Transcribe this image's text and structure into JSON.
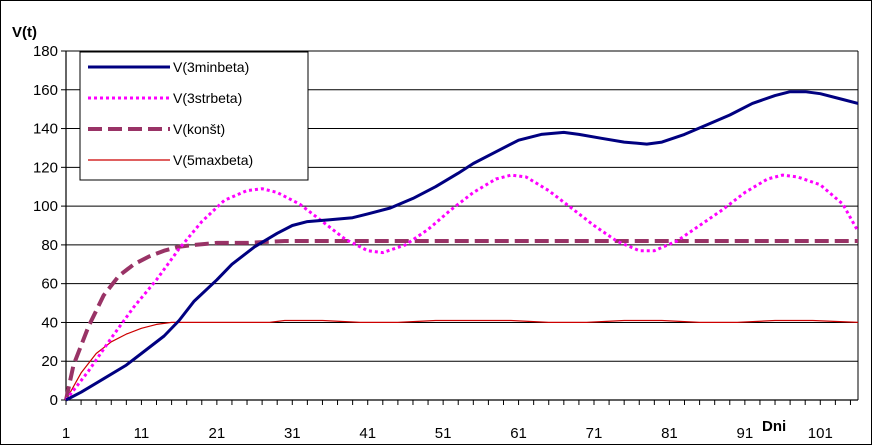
{
  "chart_data": {
    "type": "line",
    "title": "",
    "xlabel": "Dni",
    "ylabel": "V(t)",
    "ylim": [
      0,
      180
    ],
    "yticks": [
      0,
      20,
      40,
      60,
      80,
      100,
      120,
      140,
      160,
      180
    ],
    "xticks": [
      1,
      11,
      21,
      31,
      41,
      51,
      61,
      71,
      81,
      91,
      101
    ],
    "xlim": [
      1,
      106
    ],
    "grid": true,
    "legend_position": "top-left",
    "series": [
      {
        "name": "V(3minbeta)",
        "color": "#000080",
        "style": "solid-thick",
        "points": [
          [
            1,
            0
          ],
          [
            3,
            4
          ],
          [
            6,
            11
          ],
          [
            9,
            18
          ],
          [
            11,
            24
          ],
          [
            14,
            33
          ],
          [
            16,
            41
          ],
          [
            18,
            51
          ],
          [
            21,
            62
          ],
          [
            23,
            70
          ],
          [
            26,
            79
          ],
          [
            29,
            86
          ],
          [
            31,
            90
          ],
          [
            33,
            92
          ],
          [
            36,
            93
          ],
          [
            39,
            94
          ],
          [
            41,
            96
          ],
          [
            44,
            99
          ],
          [
            47,
            104
          ],
          [
            50,
            110
          ],
          [
            53,
            117
          ],
          [
            55,
            122
          ],
          [
            58,
            128
          ],
          [
            61,
            134
          ],
          [
            64,
            137
          ],
          [
            67,
            138
          ],
          [
            69,
            137
          ],
          [
            72,
            135
          ],
          [
            75,
            133
          ],
          [
            78,
            132
          ],
          [
            80,
            133
          ],
          [
            83,
            137
          ],
          [
            86,
            142
          ],
          [
            89,
            147
          ],
          [
            92,
            153
          ],
          [
            95,
            157
          ],
          [
            97,
            159
          ],
          [
            99,
            159
          ],
          [
            101,
            158
          ],
          [
            104,
            155
          ],
          [
            106,
            153
          ]
        ]
      },
      {
        "name": "V(3strbeta)",
        "color": "#ff00ff",
        "style": "dotted",
        "points": [
          [
            1,
            0
          ],
          [
            4,
            15
          ],
          [
            7,
            32
          ],
          [
            10,
            48
          ],
          [
            13,
            62
          ],
          [
            16,
            78
          ],
          [
            19,
            92
          ],
          [
            22,
            103
          ],
          [
            25,
            108
          ],
          [
            27,
            109
          ],
          [
            29,
            107
          ],
          [
            32,
            101
          ],
          [
            35,
            92
          ],
          [
            38,
            83
          ],
          [
            41,
            77
          ],
          [
            43,
            76
          ],
          [
            46,
            80
          ],
          [
            49,
            88
          ],
          [
            52,
            98
          ],
          [
            55,
            107
          ],
          [
            58,
            114
          ],
          [
            60,
            116
          ],
          [
            62,
            115
          ],
          [
            65,
            108
          ],
          [
            68,
            99
          ],
          [
            71,
            90
          ],
          [
            74,
            82
          ],
          [
            77,
            77
          ],
          [
            79,
            77
          ],
          [
            82,
            82
          ],
          [
            85,
            90
          ],
          [
            88,
            98
          ],
          [
            91,
            107
          ],
          [
            94,
            114
          ],
          [
            96,
            116
          ],
          [
            98,
            115
          ],
          [
            101,
            111
          ],
          [
            104,
            101
          ],
          [
            106,
            87
          ]
        ]
      },
      {
        "name": "V(konšt)",
        "color": "#993366",
        "style": "dashed-thick",
        "points": [
          [
            1,
            0
          ],
          [
            2,
            18
          ],
          [
            4,
            38
          ],
          [
            6,
            54
          ],
          [
            8,
            64
          ],
          [
            10,
            70
          ],
          [
            12,
            74
          ],
          [
            14,
            77
          ],
          [
            16,
            79
          ],
          [
            18,
            80
          ],
          [
            21,
            81
          ],
          [
            25,
            81
          ],
          [
            30,
            82
          ],
          [
            40,
            82
          ],
          [
            50,
            82
          ],
          [
            60,
            82
          ],
          [
            70,
            82
          ],
          [
            80,
            82
          ],
          [
            90,
            82
          ],
          [
            100,
            82
          ],
          [
            106,
            82
          ]
        ]
      },
      {
        "name": "V(5maxbeta)",
        "color": "#cc0000",
        "style": "solid-thin",
        "points": [
          [
            1,
            0
          ],
          [
            3,
            14
          ],
          [
            5,
            24
          ],
          [
            7,
            30
          ],
          [
            9,
            34
          ],
          [
            11,
            37
          ],
          [
            13,
            39
          ],
          [
            15,
            40
          ],
          [
            20,
            40
          ],
          [
            25,
            40
          ],
          [
            28,
            40
          ],
          [
            30,
            41
          ],
          [
            35,
            41
          ],
          [
            40,
            40
          ],
          [
            45,
            40
          ],
          [
            50,
            41
          ],
          [
            55,
            41
          ],
          [
            60,
            41
          ],
          [
            65,
            40
          ],
          [
            70,
            40
          ],
          [
            75,
            41
          ],
          [
            80,
            41
          ],
          [
            85,
            40
          ],
          [
            90,
            40
          ],
          [
            95,
            41
          ],
          [
            100,
            41
          ],
          [
            106,
            40
          ]
        ]
      }
    ]
  }
}
